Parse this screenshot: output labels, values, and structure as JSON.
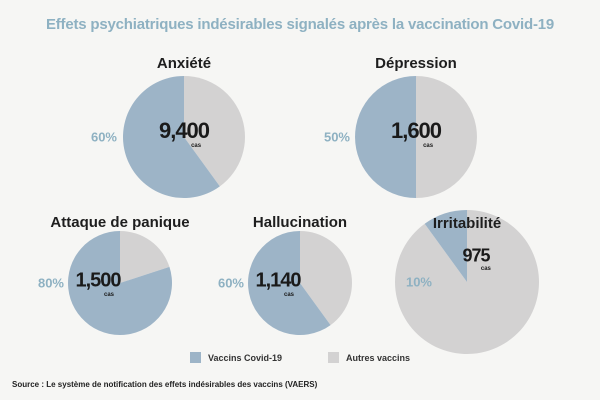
{
  "title": "Effets psychiatriques indésirables signalés après la vaccination Covid-19",
  "colors": {
    "covid": "#9db4c7",
    "other": "#d3d2d2",
    "title": "#8eb1c2",
    "pct": "#8eb1c2"
  },
  "legend": {
    "covid": "Vaccins Covid-19",
    "other": "Autres vaccins"
  },
  "source": "Source : Le système de notification des effets indésirables des vaccins (VAERS)",
  "unit": "cas",
  "chart_data": [
    {
      "type": "pie",
      "title": "Anxiété",
      "cases": "9,400",
      "covid_share": 60,
      "pct_label": "60%",
      "series": [
        {
          "name": "Vaccins Covid-19",
          "value": 60
        },
        {
          "name": "Autres vaccins",
          "value": 40
        }
      ]
    },
    {
      "type": "pie",
      "title": "Dépression",
      "cases": "1,600",
      "covid_share": 50,
      "pct_label": "50%",
      "series": [
        {
          "name": "Vaccins Covid-19",
          "value": 50
        },
        {
          "name": "Autres vaccins",
          "value": 50
        }
      ]
    },
    {
      "type": "pie",
      "title": "Attaque de panique",
      "cases": "1,500",
      "covid_share": 80,
      "pct_label": "80%",
      "series": [
        {
          "name": "Vaccins Covid-19",
          "value": 80
        },
        {
          "name": "Autres vaccins",
          "value": 20
        }
      ]
    },
    {
      "type": "pie",
      "title": "Hallucination",
      "cases": "1,140",
      "covid_share": 60,
      "pct_label": "60%",
      "series": [
        {
          "name": "Vaccins Covid-19",
          "value": 60
        },
        {
          "name": "Autres vaccins",
          "value": 40
        }
      ]
    },
    {
      "type": "pie",
      "title": "Irritabilité",
      "cases": "975",
      "covid_share": 10,
      "pct_label": "10%",
      "series": [
        {
          "name": "Vaccins Covid-19",
          "value": 10
        },
        {
          "name": "Autres vaccins",
          "value": 90
        }
      ]
    }
  ]
}
